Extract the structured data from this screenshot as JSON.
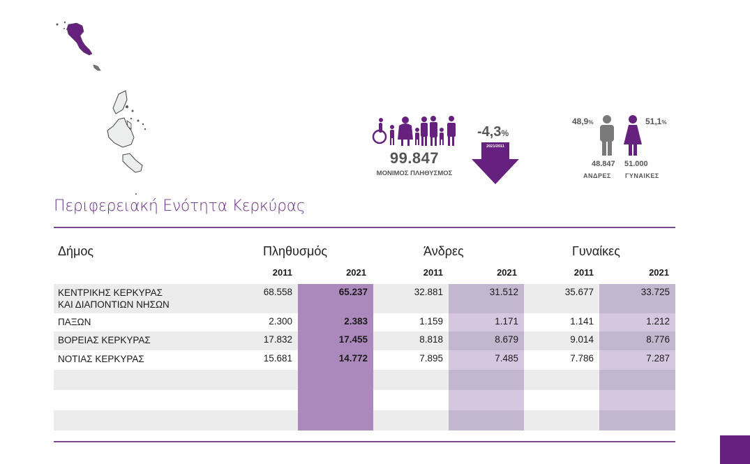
{
  "colors": {
    "brand_purple": "#66207e",
    "title_purple": "#6a2d85",
    "col_pop2021": "#ac89bd",
    "col_dark2021": "#c3b6cf",
    "col_light2021": "#d6c7e0",
    "row_gray": "#ebeceb",
    "male_gray": "#7a7a7a"
  },
  "map": {
    "icon": "regional-map-icon",
    "highlighted_region": "Κέρκυρα"
  },
  "summary": {
    "population_icon": "family-group-icon",
    "population": "99.847",
    "population_label": "ΜΟΝΙΜΟΣ ΠΛΗΘΥΣΜΟΣ",
    "change_value": "-4,3",
    "change_unit": "%",
    "change_period": "2021/2011",
    "change_icon": "down-arrow-icon"
  },
  "gender": {
    "male_pct": "48,9",
    "female_pct": "51,1",
    "pct_unit": "%",
    "male_count": "48.847",
    "female_count": "51.000",
    "male_label": "ΑΝΔΡΕΣ",
    "female_label": "ΓΥΝΑΙΚΕΣ",
    "male_icon": "male-person-icon",
    "female_icon": "female-person-icon"
  },
  "title": "Περιφερειακή Ενότητα Κερκύρας",
  "table": {
    "col_municipality": "Δήμος",
    "groups": [
      "Πληθυσμός",
      "Άνδρες",
      "Γυναίκες"
    ],
    "years": [
      "2011",
      "2021",
      "2011",
      "2021",
      "2011",
      "2021"
    ],
    "rows": [
      {
        "name1": "ΚΕΝΤΡΙΚΗΣ ΚΕΡΚΥΡΑΣ",
        "name2": "ΚΑΙ ΔΙΑΠΟΝΤΙΩΝ ΝΗΣΩΝ",
        "values": [
          "68.558",
          "65.237",
          "32.881",
          "31.512",
          "35.677",
          "33.725"
        ]
      },
      {
        "name1": "ΠΑΞΩΝ",
        "name2": "",
        "values": [
          "2.300",
          "2.383",
          "1.159",
          "1.171",
          "1.141",
          "1.212"
        ]
      },
      {
        "name1": "ΒΟΡΕΙΑΣ ΚΕΡΚΥΡΑΣ",
        "name2": "",
        "values": [
          "17.832",
          "17.455",
          "8.818",
          "8.679",
          "9.014",
          "8.776"
        ]
      },
      {
        "name1": "ΝΟΤΙΑΣ ΚΕΡΚΥΡΑΣ",
        "name2": "",
        "values": [
          "15.681",
          "14.772",
          "7.895",
          "7.485",
          "7.786",
          "7.287"
        ]
      }
    ]
  }
}
